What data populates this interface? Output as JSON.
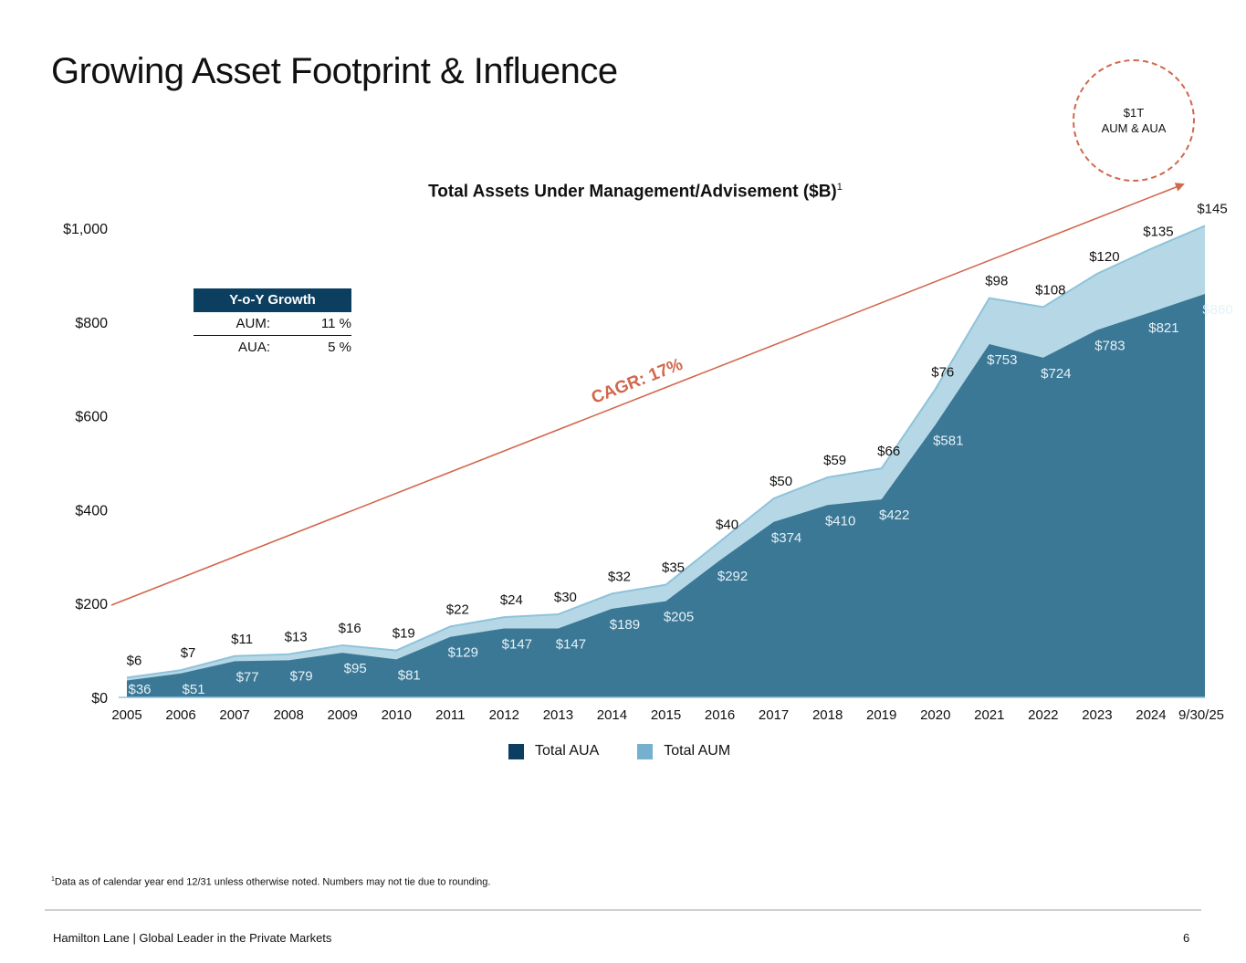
{
  "page": {
    "title": "Growing Asset Footprint & Influence",
    "callout_line1": "$1T",
    "callout_line2": "AUM & AUA",
    "footnote_marker": "1",
    "footnote": "Data as of calendar year end 12/31 unless otherwise noted. Numbers may not tie due to rounding.",
    "footer_left": "Hamilton Lane  |  Global Leader in the Private Markets",
    "page_number": "6"
  },
  "growth_table": {
    "header": "Y-o-Y Growth",
    "rows": [
      {
        "label": "AUM:",
        "value": "11 %"
      },
      {
        "label": "AUA:",
        "value": "5 %"
      }
    ]
  },
  "colors": {
    "aua": "#3b7896",
    "aum": "#b6d8e6",
    "aum_edge": "#8ec3da",
    "aua_legend": "#0c3f5f",
    "aum_legend": "#75b0cf",
    "cagr": "#d2674c"
  },
  "chart_data": {
    "type": "area",
    "stacked": true,
    "title": "Total Assets Under Management/Advisement ($B)",
    "title_footnote": "1",
    "categories": [
      "2005",
      "2006",
      "2007",
      "2008",
      "2009",
      "2010",
      "2011",
      "2012",
      "2013",
      "2014",
      "2015",
      "2016",
      "2017",
      "2018",
      "2019",
      "2020",
      "2021",
      "2022",
      "2023",
      "2024",
      "9/30/25"
    ],
    "series": [
      {
        "name": "Total AUA",
        "values": [
          36,
          51,
          77,
          79,
          95,
          81,
          129,
          147,
          147,
          189,
          205,
          292,
          374,
          410,
          422,
          581,
          753,
          724,
          783,
          821,
          860
        ]
      },
      {
        "name": "Total AUM",
        "values": [
          6,
          7,
          11,
          13,
          16,
          19,
          22,
          24,
          30,
          32,
          35,
          40,
          50,
          59,
          66,
          76,
          98,
          108,
          120,
          135,
          145
        ]
      }
    ],
    "y_ticks": [
      "$0",
      "$200",
      "$400",
      "$600",
      "$800",
      "$1,000"
    ],
    "ylim": [
      0,
      1000
    ],
    "grid": false,
    "legend": "bottom-center",
    "annotation": "CAGR: 17%"
  }
}
